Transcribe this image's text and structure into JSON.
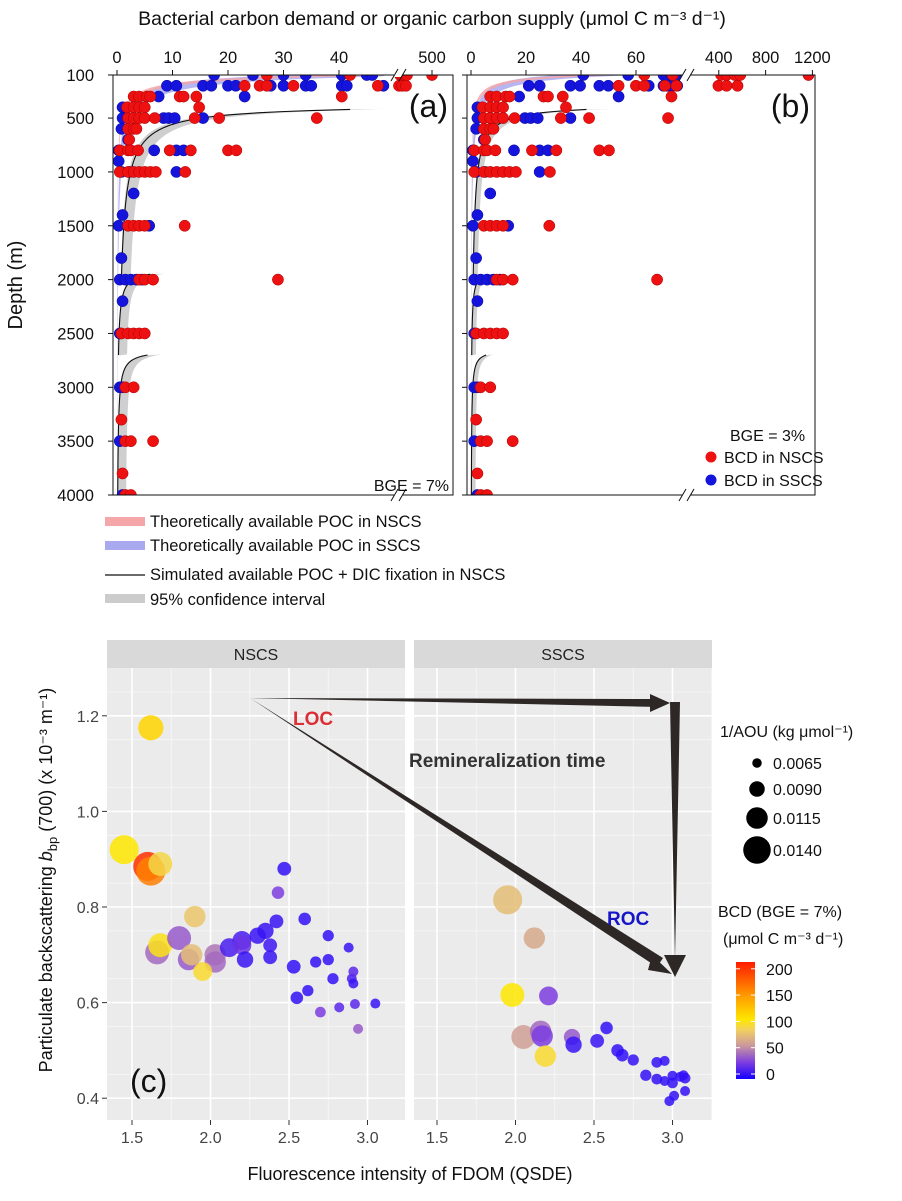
{
  "figure": {
    "top_axis_title": "Bacterial carbon demand or organic carbon supply (μmol C m⁻³ d⁻¹)",
    "depth_axis_title": "Depth (m)",
    "legend_ab": [
      {
        "label": "Theoretically available POC in NSCS",
        "color": "#f4a6a8"
      },
      {
        "label": "Theoretically available POC in SSCS",
        "color": "#a9a9f0"
      },
      {
        "label": "Simulated available POC + DIC fixation in NSCS",
        "color": "#111111"
      },
      {
        "label": "95% confidence interval",
        "color": "#cccccc"
      }
    ]
  },
  "chart_data": [
    {
      "type": "scatter",
      "panel_label": "(a)",
      "annotation": "BGE = 7%",
      "bge_percent": 7,
      "xlabel": "Bacterial carbon demand or organic carbon supply (μmol C m⁻³ d⁻¹)",
      "ylabel": "Depth (m)",
      "x_ticks_lower": [
        "0",
        "10",
        "20",
        "30",
        "40"
      ],
      "x_ticks_upper": [
        "500"
      ],
      "y_ticks": [
        "100",
        "500",
        "1000",
        "1500",
        "2000",
        "2500",
        "3000",
        "3500",
        "4000"
      ],
      "ylim": [
        4000,
        100
      ],
      "x_axis_break": true
    },
    {
      "type": "scatter",
      "panel_label": "(b)",
      "annotation": "BGE = 3%",
      "bge_percent": 3,
      "x_ticks_lower": [
        "0",
        "20",
        "40",
        "60"
      ],
      "x_ticks_upper": [
        "400",
        "800",
        "1200"
      ],
      "ylim": [
        4000,
        100
      ],
      "x_axis_break": true,
      "legend": [
        {
          "label": "BCD in NSCS",
          "color": "#ee1111"
        },
        {
          "label": "BCD in SSCS",
          "color": "#1414dd"
        }
      ]
    },
    {
      "type": "scatter",
      "panel_label": "(c)",
      "facets": [
        "NSCS",
        "SSCS"
      ],
      "xlabel": "Fluorescence intensity of FDOM (QSDE)",
      "ylabel_parts": [
        "Particulate backscattering ",
        "b",
        "bp",
        " (700) (x 10⁻³ m⁻¹)"
      ],
      "x_ticks": [
        "1.5",
        "2.0",
        "2.5",
        "3.0"
      ],
      "y_ticks": [
        "0.4",
        "0.6",
        "0.8",
        "1.0",
        "1.2"
      ],
      "annotations": {
        "loc": "LOC",
        "roc": "ROC",
        "remin": "Remineralization time"
      },
      "size_legend": {
        "title": "1/AOU (kg μmol⁻¹)",
        "values": [
          "0.0065",
          "0.0090",
          "0.0115",
          "0.0140"
        ]
      },
      "color_legend": {
        "title1": "BCD (BGE = 7%)",
        "title2": "(μmol C m⁻³ d⁻¹)",
        "ticks": [
          "200",
          "150",
          "100",
          "50",
          "0"
        ]
      },
      "columns": [
        "fdom",
        "bbp",
        "inv_aou",
        "bcd"
      ],
      "nscs": [
        [
          1.62,
          1.175,
          0.0125,
          120
        ],
        [
          1.45,
          0.92,
          0.014,
          110
        ],
        [
          1.6,
          0.885,
          0.014,
          200
        ],
        [
          1.68,
          0.89,
          0.012,
          95
        ],
        [
          1.62,
          0.875,
          0.014,
          165
        ],
        [
          1.9,
          0.78,
          0.011,
          85
        ],
        [
          1.66,
          0.705,
          0.012,
          45
        ],
        [
          1.68,
          0.72,
          0.012,
          105
        ],
        [
          1.8,
          0.735,
          0.012,
          40
        ],
        [
          1.86,
          0.69,
          0.011,
          40
        ],
        [
          1.88,
          0.7,
          0.011,
          80
        ],
        [
          2.03,
          0.7,
          0.011,
          50
        ],
        [
          2.03,
          0.685,
          0.011,
          45
        ],
        [
          1.95,
          0.665,
          0.01,
          100
        ],
        [
          2.12,
          0.715,
          0.01,
          15
        ],
        [
          2.2,
          0.73,
          0.01,
          15
        ],
        [
          2.2,
          0.72,
          0.01,
          25
        ],
        [
          2.22,
          0.69,
          0.009,
          10
        ],
        [
          2.3,
          0.74,
          0.009,
          10
        ],
        [
          2.35,
          0.75,
          0.009,
          10
        ],
        [
          2.38,
          0.72,
          0.008,
          12
        ],
        [
          2.38,
          0.695,
          0.008,
          10
        ],
        [
          2.42,
          0.77,
          0.008,
          10
        ],
        [
          2.43,
          0.83,
          0.0075,
          30
        ],
        [
          2.47,
          0.88,
          0.008,
          8
        ],
        [
          2.53,
          0.675,
          0.008,
          8
        ],
        [
          2.55,
          0.61,
          0.0075,
          8
        ],
        [
          2.6,
          0.775,
          0.0075,
          8
        ],
        [
          2.62,
          0.625,
          0.007,
          8
        ],
        [
          2.67,
          0.685,
          0.007,
          8
        ],
        [
          2.7,
          0.58,
          0.0068,
          30
        ],
        [
          2.75,
          0.69,
          0.007,
          8
        ],
        [
          2.75,
          0.74,
          0.007,
          8
        ],
        [
          2.78,
          0.65,
          0.007,
          8
        ],
        [
          2.82,
          0.59,
          0.0065,
          20
        ],
        [
          2.88,
          0.715,
          0.0065,
          10
        ],
        [
          2.9,
          0.65,
          0.0065,
          15
        ],
        [
          2.91,
          0.665,
          0.0065,
          20
        ],
        [
          2.91,
          0.64,
          0.0065,
          10
        ],
        [
          2.92,
          0.597,
          0.0065,
          20
        ],
        [
          2.94,
          0.545,
          0.0065,
          40
        ],
        [
          3.05,
          0.598,
          0.0065,
          10
        ]
      ],
      "sscs": [
        [
          1.95,
          0.815,
          0.014,
          80
        ],
        [
          2.12,
          0.735,
          0.011,
          70
        ],
        [
          1.98,
          0.616,
          0.012,
          110
        ],
        [
          2.21,
          0.614,
          0.01,
          30
        ],
        [
          2.05,
          0.528,
          0.012,
          65
        ],
        [
          2.16,
          0.54,
          0.011,
          45
        ],
        [
          2.17,
          0.53,
          0.011,
          30
        ],
        [
          2.19,
          0.488,
          0.011,
          100
        ],
        [
          2.36,
          0.528,
          0.009,
          40
        ],
        [
          2.37,
          0.512,
          0.009,
          10
        ],
        [
          2.52,
          0.52,
          0.008,
          10
        ],
        [
          2.58,
          0.547,
          0.0075,
          8
        ],
        [
          2.65,
          0.5,
          0.0075,
          8
        ],
        [
          2.68,
          0.49,
          0.0075,
          8
        ],
        [
          2.75,
          0.48,
          0.007,
          8
        ],
        [
          2.83,
          0.448,
          0.007,
          8
        ],
        [
          2.9,
          0.475,
          0.0068,
          8
        ],
        [
          2.95,
          0.478,
          0.0065,
          8
        ],
        [
          2.9,
          0.44,
          0.0068,
          8
        ],
        [
          2.95,
          0.436,
          0.0065,
          8
        ],
        [
          3.0,
          0.447,
          0.0065,
          8
        ],
        [
          3.0,
          0.432,
          0.0068,
          8
        ],
        [
          3.05,
          0.445,
          0.0065,
          8
        ],
        [
          3.07,
          0.448,
          0.0065,
          8
        ],
        [
          3.08,
          0.442,
          0.0068,
          8
        ],
        [
          3.08,
          0.415,
          0.0065,
          8
        ],
        [
          3.01,
          0.405,
          0.0065,
          8
        ],
        [
          2.98,
          0.394,
          0.0065,
          8
        ]
      ]
    }
  ],
  "depth_profiles": {
    "note_columns": [
      "depth_m",
      "bcd_at_bge7"
    ],
    "nscs": [
      [
        100,
        27
      ],
      [
        100,
        42
      ],
      [
        100,
        180
      ],
      [
        100,
        200
      ],
      [
        100,
        230
      ],
      [
        100,
        250
      ],
      [
        100,
        500
      ],
      [
        200,
        23
      ],
      [
        200,
        25.7
      ],
      [
        200,
        27
      ],
      [
        200,
        31.8
      ],
      [
        200,
        47
      ],
      [
        200,
        170
      ],
      [
        200,
        200
      ],
      [
        200,
        240
      ],
      [
        300,
        3
      ],
      [
        300,
        4
      ],
      [
        300,
        5.4
      ],
      [
        300,
        6
      ],
      [
        300,
        11.3
      ],
      [
        300,
        12
      ],
      [
        300,
        14.3
      ],
      [
        300,
        40.5
      ],
      [
        400,
        1.8
      ],
      [
        400,
        3
      ],
      [
        400,
        4
      ],
      [
        400,
        5
      ],
      [
        400,
        14.8
      ],
      [
        500,
        2
      ],
      [
        500,
        3
      ],
      [
        500,
        4
      ],
      [
        500,
        5
      ],
      [
        500,
        6.8
      ],
      [
        500,
        14
      ],
      [
        500,
        18.4
      ],
      [
        500,
        36
      ],
      [
        600,
        2
      ],
      [
        600,
        3
      ],
      [
        600,
        3.5
      ],
      [
        700,
        2.2
      ],
      [
        800,
        0.5
      ],
      [
        800,
        2
      ],
      [
        800,
        2.5
      ],
      [
        800,
        3.8
      ],
      [
        800,
        9.5
      ],
      [
        800,
        13.3
      ],
      [
        800,
        20
      ],
      [
        800,
        21.5
      ],
      [
        1000,
        0.5
      ],
      [
        1000,
        2
      ],
      [
        1000,
        3
      ],
      [
        1000,
        4
      ],
      [
        1000,
        5
      ],
      [
        1000,
        6
      ],
      [
        1000,
        7
      ],
      [
        1000,
        12.3
      ],
      [
        1500,
        2
      ],
      [
        1500,
        3
      ],
      [
        1500,
        4
      ],
      [
        1500,
        5
      ],
      [
        1500,
        12.2
      ],
      [
        2000,
        4
      ],
      [
        2000,
        5
      ],
      [
        2000,
        6.5
      ],
      [
        2000,
        29
      ],
      [
        2500,
        0.8
      ],
      [
        2500,
        2
      ],
      [
        2500,
        3
      ],
      [
        2500,
        4
      ],
      [
        2500,
        5
      ],
      [
        3000,
        1.5
      ],
      [
        3000,
        3
      ],
      [
        3300,
        0.8
      ],
      [
        3500,
        1.5
      ],
      [
        3500,
        2.5
      ],
      [
        3500,
        6.5
      ],
      [
        3800,
        1
      ],
      [
        4000,
        1.5
      ],
      [
        4000,
        2.5
      ]
    ],
    "sscs": [
      [
        100,
        17.5
      ],
      [
        100,
        24.5
      ],
      [
        100,
        30
      ],
      [
        100,
        34
      ],
      [
        100,
        40.5
      ],
      [
        100,
        45
      ],
      [
        100,
        46
      ],
      [
        200,
        9
      ],
      [
        200,
        10.7
      ],
      [
        200,
        15.5
      ],
      [
        200,
        17
      ],
      [
        200,
        20
      ],
      [
        200,
        21.4
      ],
      [
        200,
        27.7
      ],
      [
        200,
        30
      ],
      [
        200,
        34
      ],
      [
        200,
        35
      ],
      [
        200,
        40.5
      ],
      [
        200,
        41.4
      ],
      [
        200,
        48
      ],
      [
        300,
        7.5
      ],
      [
        300,
        23
      ],
      [
        400,
        1
      ],
      [
        500,
        1
      ],
      [
        500,
        8.4
      ],
      [
        500,
        9.3
      ],
      [
        500,
        10.4
      ],
      [
        500,
        15.5
      ],
      [
        600,
        0.8
      ],
      [
        700,
        2
      ],
      [
        800,
        0.3
      ],
      [
        800,
        6.7
      ],
      [
        800,
        10.7
      ],
      [
        800,
        12
      ],
      [
        900,
        0.3
      ],
      [
        1000,
        0.8
      ],
      [
        1000,
        2.2
      ],
      [
        1000,
        10.7
      ],
      [
        1200,
        3
      ],
      [
        1400,
        1
      ],
      [
        1500,
        0.3
      ],
      [
        1500,
        5.8
      ],
      [
        1800,
        0.8
      ],
      [
        2000,
        0.5
      ],
      [
        2000,
        1.5
      ],
      [
        2000,
        2.5
      ],
      [
        2000,
        3.5
      ],
      [
        2000,
        4.5
      ],
      [
        2200,
        1
      ],
      [
        2500,
        0.5
      ],
      [
        3000,
        0.5
      ],
      [
        3000,
        1
      ],
      [
        3500,
        0.5
      ],
      [
        4000,
        1
      ]
    ],
    "poc_nscs_curve": {
      "value_at_100m": 48,
      "exponent": 2.4
    },
    "poc_sscs_curve": {
      "value_at_100m": 45,
      "exponent": 1.9
    },
    "simulated_segments": [
      {
        "start_depth": 420,
        "start_value": 42,
        "end_depth": 2000
      },
      {
        "start_depth": 1950,
        "start_value": 6,
        "end_depth": 2700
      },
      {
        "start_depth": 2700,
        "start_value": 5.5,
        "end_depth": 4000
      }
    ]
  }
}
